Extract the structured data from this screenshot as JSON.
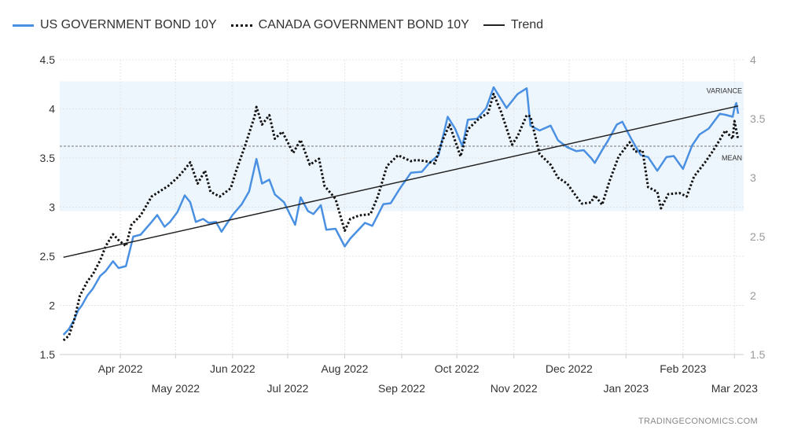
{
  "chart_data": {
    "type": "line",
    "legend_position": "top-left",
    "grid": true,
    "series": [
      {
        "name": "US GOVERNMENT BOND 10Y",
        "color": "#4a90e2",
        "style": "solid",
        "axis": "left",
        "points": [
          [
            "2022-03-01",
            1.7
          ],
          [
            "2022-03-04",
            1.76
          ],
          [
            "2022-03-07",
            1.86
          ],
          [
            "2022-03-09",
            1.95
          ],
          [
            "2022-03-11",
            2.0
          ],
          [
            "2022-03-14",
            2.1
          ],
          [
            "2022-03-17",
            2.17
          ],
          [
            "2022-03-21",
            2.3
          ],
          [
            "2022-03-24",
            2.35
          ],
          [
            "2022-03-28",
            2.45
          ],
          [
            "2022-03-31",
            2.38
          ],
          [
            "2022-04-04",
            2.4
          ],
          [
            "2022-04-08",
            2.7
          ],
          [
            "2022-04-12",
            2.72
          ],
          [
            "2022-04-18",
            2.85
          ],
          [
            "2022-04-21",
            2.92
          ],
          [
            "2022-04-25",
            2.8
          ],
          [
            "2022-04-28",
            2.85
          ],
          [
            "2022-05-02",
            2.95
          ],
          [
            "2022-05-06",
            3.12
          ],
          [
            "2022-05-09",
            3.05
          ],
          [
            "2022-05-12",
            2.85
          ],
          [
            "2022-05-16",
            2.88
          ],
          [
            "2022-05-19",
            2.84
          ],
          [
            "2022-05-23",
            2.85
          ],
          [
            "2022-05-26",
            2.75
          ],
          [
            "2022-06-01",
            2.92
          ],
          [
            "2022-06-06",
            3.03
          ],
          [
            "2022-06-10",
            3.16
          ],
          [
            "2022-06-14",
            3.49
          ],
          [
            "2022-06-17",
            3.24
          ],
          [
            "2022-06-21",
            3.28
          ],
          [
            "2022-06-24",
            3.13
          ],
          [
            "2022-06-29",
            3.05
          ],
          [
            "2022-07-05",
            2.82
          ],
          [
            "2022-07-08",
            3.1
          ],
          [
            "2022-07-12",
            2.96
          ],
          [
            "2022-07-15",
            2.93
          ],
          [
            "2022-07-19",
            3.02
          ],
          [
            "2022-07-22",
            2.77
          ],
          [
            "2022-07-27",
            2.78
          ],
          [
            "2022-08-01",
            2.6
          ],
          [
            "2022-08-04",
            2.68
          ],
          [
            "2022-08-08",
            2.76
          ],
          [
            "2022-08-12",
            2.84
          ],
          [
            "2022-08-16",
            2.81
          ],
          [
            "2022-08-22",
            3.03
          ],
          [
            "2022-08-26",
            3.04
          ],
          [
            "2022-08-31",
            3.19
          ],
          [
            "2022-09-06",
            3.35
          ],
          [
            "2022-09-12",
            3.36
          ],
          [
            "2022-09-16",
            3.45
          ],
          [
            "2022-09-21",
            3.53
          ],
          [
            "2022-09-26",
            3.92
          ],
          [
            "2022-09-30",
            3.8
          ],
          [
            "2022-10-04",
            3.62
          ],
          [
            "2022-10-07",
            3.89
          ],
          [
            "2022-10-12",
            3.9
          ],
          [
            "2022-10-17",
            4.01
          ],
          [
            "2022-10-21",
            4.22
          ],
          [
            "2022-10-25",
            4.1
          ],
          [
            "2022-10-28",
            4.01
          ],
          [
            "2022-11-03",
            4.15
          ],
          [
            "2022-11-08",
            4.21
          ],
          [
            "2022-11-10",
            3.83
          ],
          [
            "2022-11-15",
            3.78
          ],
          [
            "2022-11-21",
            3.83
          ],
          [
            "2022-11-25",
            3.68
          ],
          [
            "2022-11-30",
            3.61
          ],
          [
            "2022-12-05",
            3.57
          ],
          [
            "2022-12-09",
            3.58
          ],
          [
            "2022-12-13",
            3.5
          ],
          [
            "2022-12-15",
            3.45
          ],
          [
            "2022-12-19",
            3.58
          ],
          [
            "2022-12-22",
            3.67
          ],
          [
            "2022-12-27",
            3.84
          ],
          [
            "2022-12-30",
            3.87
          ],
          [
            "2023-01-04",
            3.69
          ],
          [
            "2023-01-09",
            3.53
          ],
          [
            "2023-01-13",
            3.51
          ],
          [
            "2023-01-18",
            3.37
          ],
          [
            "2023-01-23",
            3.51
          ],
          [
            "2023-01-27",
            3.52
          ],
          [
            "2023-02-01",
            3.39
          ],
          [
            "2023-02-06",
            3.63
          ],
          [
            "2023-02-10",
            3.74
          ],
          [
            "2023-02-15",
            3.8
          ],
          [
            "2023-02-21",
            3.95
          ],
          [
            "2023-02-24",
            3.94
          ],
          [
            "2023-02-28",
            3.92
          ],
          [
            "2023-03-01",
            4.01
          ],
          [
            "2023-03-02",
            4.06
          ],
          [
            "2023-03-03",
            3.95
          ]
        ]
      },
      {
        "name": "CANADA GOVERNMENT BOND 10Y",
        "color": "#111111",
        "style": "dotted",
        "axis": "right",
        "points": [
          [
            "2022-03-01",
            1.62
          ],
          [
            "2022-03-04",
            1.66
          ],
          [
            "2022-03-07",
            1.8
          ],
          [
            "2022-03-10",
            2.0
          ],
          [
            "2022-03-14",
            2.12
          ],
          [
            "2022-03-17",
            2.18
          ],
          [
            "2022-03-21",
            2.3
          ],
          [
            "2022-03-24",
            2.42
          ],
          [
            "2022-03-28",
            2.52
          ],
          [
            "2022-03-31",
            2.47
          ],
          [
            "2022-04-04",
            2.42
          ],
          [
            "2022-04-07",
            2.6
          ],
          [
            "2022-04-12",
            2.68
          ],
          [
            "2022-04-18",
            2.84
          ],
          [
            "2022-04-22",
            2.88
          ],
          [
            "2022-04-27",
            2.93
          ],
          [
            "2022-05-02",
            3.0
          ],
          [
            "2022-05-06",
            3.07
          ],
          [
            "2022-05-09",
            3.13
          ],
          [
            "2022-05-13",
            2.95
          ],
          [
            "2022-05-17",
            3.06
          ],
          [
            "2022-05-20",
            2.88
          ],
          [
            "2022-05-25",
            2.84
          ],
          [
            "2022-05-31",
            2.91
          ],
          [
            "2022-06-03",
            3.06
          ],
          [
            "2022-06-08",
            3.28
          ],
          [
            "2022-06-13",
            3.52
          ],
          [
            "2022-06-14",
            3.6
          ],
          [
            "2022-06-17",
            3.45
          ],
          [
            "2022-06-21",
            3.53
          ],
          [
            "2022-06-24",
            3.33
          ],
          [
            "2022-06-28",
            3.39
          ],
          [
            "2022-07-04",
            3.21
          ],
          [
            "2022-07-08",
            3.32
          ],
          [
            "2022-07-13",
            3.11
          ],
          [
            "2022-07-18",
            3.16
          ],
          [
            "2022-07-21",
            2.93
          ],
          [
            "2022-07-27",
            2.82
          ],
          [
            "2022-08-01",
            2.55
          ],
          [
            "2022-08-04",
            2.65
          ],
          [
            "2022-08-09",
            2.68
          ],
          [
            "2022-08-15",
            2.69
          ],
          [
            "2022-08-19",
            2.84
          ],
          [
            "2022-08-24",
            3.1
          ],
          [
            "2022-08-30",
            3.19
          ],
          [
            "2022-09-06",
            3.14
          ],
          [
            "2022-09-09",
            3.15
          ],
          [
            "2022-09-14",
            3.14
          ],
          [
            "2022-09-19",
            3.12
          ],
          [
            "2022-09-23",
            3.31
          ],
          [
            "2022-09-27",
            3.45
          ],
          [
            "2022-10-03",
            3.18
          ],
          [
            "2022-10-07",
            3.41
          ],
          [
            "2022-10-13",
            3.5
          ],
          [
            "2022-10-18",
            3.55
          ],
          [
            "2022-10-21",
            3.71
          ],
          [
            "2022-10-25",
            3.56
          ],
          [
            "2022-10-31",
            3.28
          ],
          [
            "2022-11-03",
            3.35
          ],
          [
            "2022-11-08",
            3.53
          ],
          [
            "2022-11-10",
            3.52
          ],
          [
            "2022-11-15",
            3.2
          ],
          [
            "2022-11-21",
            3.11
          ],
          [
            "2022-11-25",
            3.0
          ],
          [
            "2022-11-30",
            2.95
          ],
          [
            "2022-12-05",
            2.84
          ],
          [
            "2022-12-08",
            2.78
          ],
          [
            "2022-12-13",
            2.79
          ],
          [
            "2022-12-15",
            2.85
          ],
          [
            "2022-12-19",
            2.77
          ],
          [
            "2022-12-23",
            2.97
          ],
          [
            "2022-12-28",
            3.18
          ],
          [
            "2023-01-03",
            3.3
          ],
          [
            "2023-01-06",
            3.22
          ],
          [
            "2023-01-10",
            3.23
          ],
          [
            "2023-01-13",
            2.92
          ],
          [
            "2023-01-18",
            2.88
          ],
          [
            "2023-01-20",
            2.74
          ],
          [
            "2023-01-24",
            2.86
          ],
          [
            "2023-01-30",
            2.87
          ],
          [
            "2023-02-03",
            2.84
          ],
          [
            "2023-02-07",
            3.01
          ],
          [
            "2023-02-13",
            3.13
          ],
          [
            "2023-02-17",
            3.22
          ],
          [
            "2023-02-21",
            3.32
          ],
          [
            "2023-02-24",
            3.4
          ],
          [
            "2023-02-28",
            3.33
          ],
          [
            "2023-03-01",
            3.48
          ],
          [
            "2023-03-03",
            3.32
          ]
        ]
      },
      {
        "name": "Trend",
        "color": "#222222",
        "style": "solid",
        "axis": "left",
        "points": [
          [
            "2022-03-01",
            2.49
          ],
          [
            "2023-03-03",
            4.03
          ]
        ]
      }
    ],
    "reference_lines": [
      {
        "label": "MEAN",
        "axis": "left",
        "value": 3.62
      },
      {
        "label": "VARIANCE",
        "axis": "left",
        "band": [
          2.96,
          4.28
        ],
        "color": "#eef6fd"
      }
    ],
    "y_left": {
      "min": 1.5,
      "max": 4.5,
      "ticks": [
        1.5,
        2,
        2.5,
        3,
        3.5,
        4,
        4.5
      ]
    },
    "y_right": {
      "min": 1.5,
      "max": 4.0,
      "ticks": [
        1.5,
        2,
        2.5,
        3,
        3.5,
        4
      ]
    },
    "x_range": [
      "2022-02-27",
      "2023-03-06"
    ],
    "x_ticks": [
      {
        "date": "2022-04-01",
        "label": "Apr 2022",
        "row": 1
      },
      {
        "date": "2022-05-01",
        "label": "May 2022",
        "row": 2
      },
      {
        "date": "2022-06-01",
        "label": "Jun 2022",
        "row": 1
      },
      {
        "date": "2022-07-01",
        "label": "Jul 2022",
        "row": 2
      },
      {
        "date": "2022-08-01",
        "label": "Aug 2022",
        "row": 1
      },
      {
        "date": "2022-09-01",
        "label": "Sep 2022",
        "row": 2
      },
      {
        "date": "2022-10-01",
        "label": "Oct 2022",
        "row": 1
      },
      {
        "date": "2022-11-01",
        "label": "Nov 2022",
        "row": 2
      },
      {
        "date": "2022-12-01",
        "label": "Dec 2022",
        "row": 1
      },
      {
        "date": "2023-01-01",
        "label": "Jan 2023",
        "row": 2
      },
      {
        "date": "2023-02-01",
        "label": "Feb 2023",
        "row": 1
      },
      {
        "date": "2023-03-01",
        "label": "Mar 2023",
        "row": 2
      }
    ],
    "watermark": "TRADINGECONOMICS.COM"
  }
}
